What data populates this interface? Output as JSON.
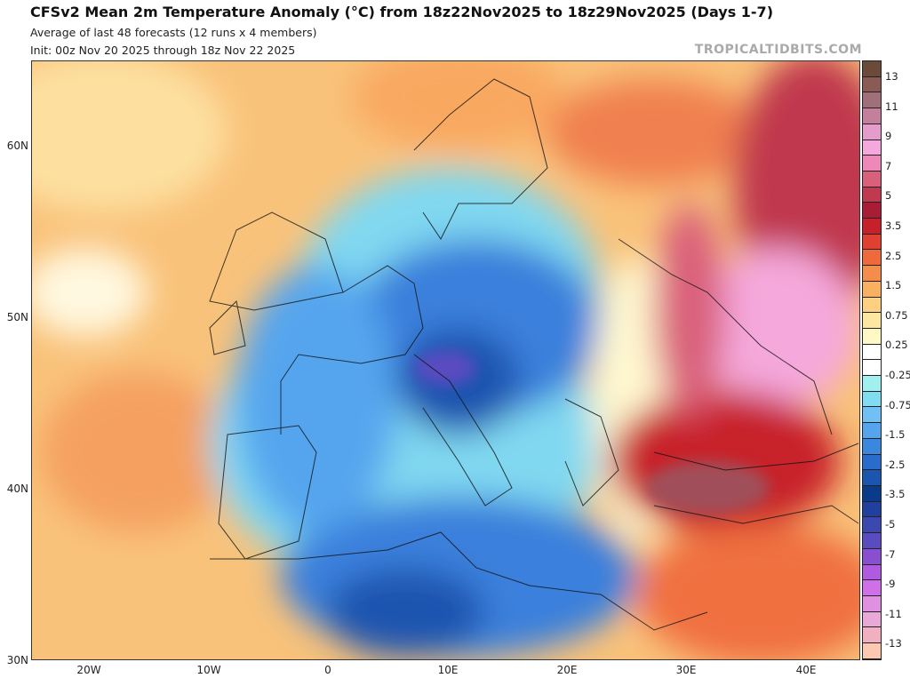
{
  "header": {
    "title": "CFSv2 Mean 2m Temperature Anomaly (°C) from 18z22Nov2025 to 18z29Nov2025 (Days 1-7)",
    "subtitle": "Average of last 48 forecasts (12 runs x 4 members)",
    "init": "Init: 00z Nov 20 2025 through 18z Nov 22 2025",
    "brand": "TROPICALTIDBITS.COM"
  },
  "axes": {
    "lat": [
      "60N",
      "50N",
      "40N",
      "30N"
    ],
    "lon": [
      "20W",
      "10W",
      "0",
      "10E",
      "20E",
      "30E",
      "40E"
    ]
  },
  "colorbar": {
    "labels": [
      "13",
      "11",
      "9",
      "7",
      "5",
      "3.5",
      "2.5",
      "1.5",
      "0.75",
      "0.25",
      "-0.25",
      "-0.75",
      "-1.5",
      "-2.5",
      "-3.5",
      "-5",
      "-7",
      "-9",
      "-11",
      "-13"
    ],
    "colors": [
      "#6b4a3a",
      "#8a5a55",
      "#a0707a",
      "#c47f9c",
      "#e39ccc",
      "#f5a8dc",
      "#ee88b8",
      "#d9607a",
      "#c0394e",
      "#a81c35",
      "#c8202a",
      "#e0402f",
      "#ef6a3b",
      "#f58d4a",
      "#f9b060",
      "#fcd080",
      "#fde7a0",
      "#fdf8c4",
      "#ffffff",
      "#ffffff",
      "#a0f0f0",
      "#80dcf0",
      "#70c0f5",
      "#55a5ee",
      "#3a88de",
      "#2a6ccc",
      "#1a55b0",
      "#0a3a8a",
      "#2040a0",
      "#3a48b0",
      "#5a4cc0",
      "#8850d0",
      "#b05ae0",
      "#d070e8",
      "#e090e0",
      "#e8a8d8",
      "#f0b0c0",
      "#fcc8b0"
    ]
  }
}
